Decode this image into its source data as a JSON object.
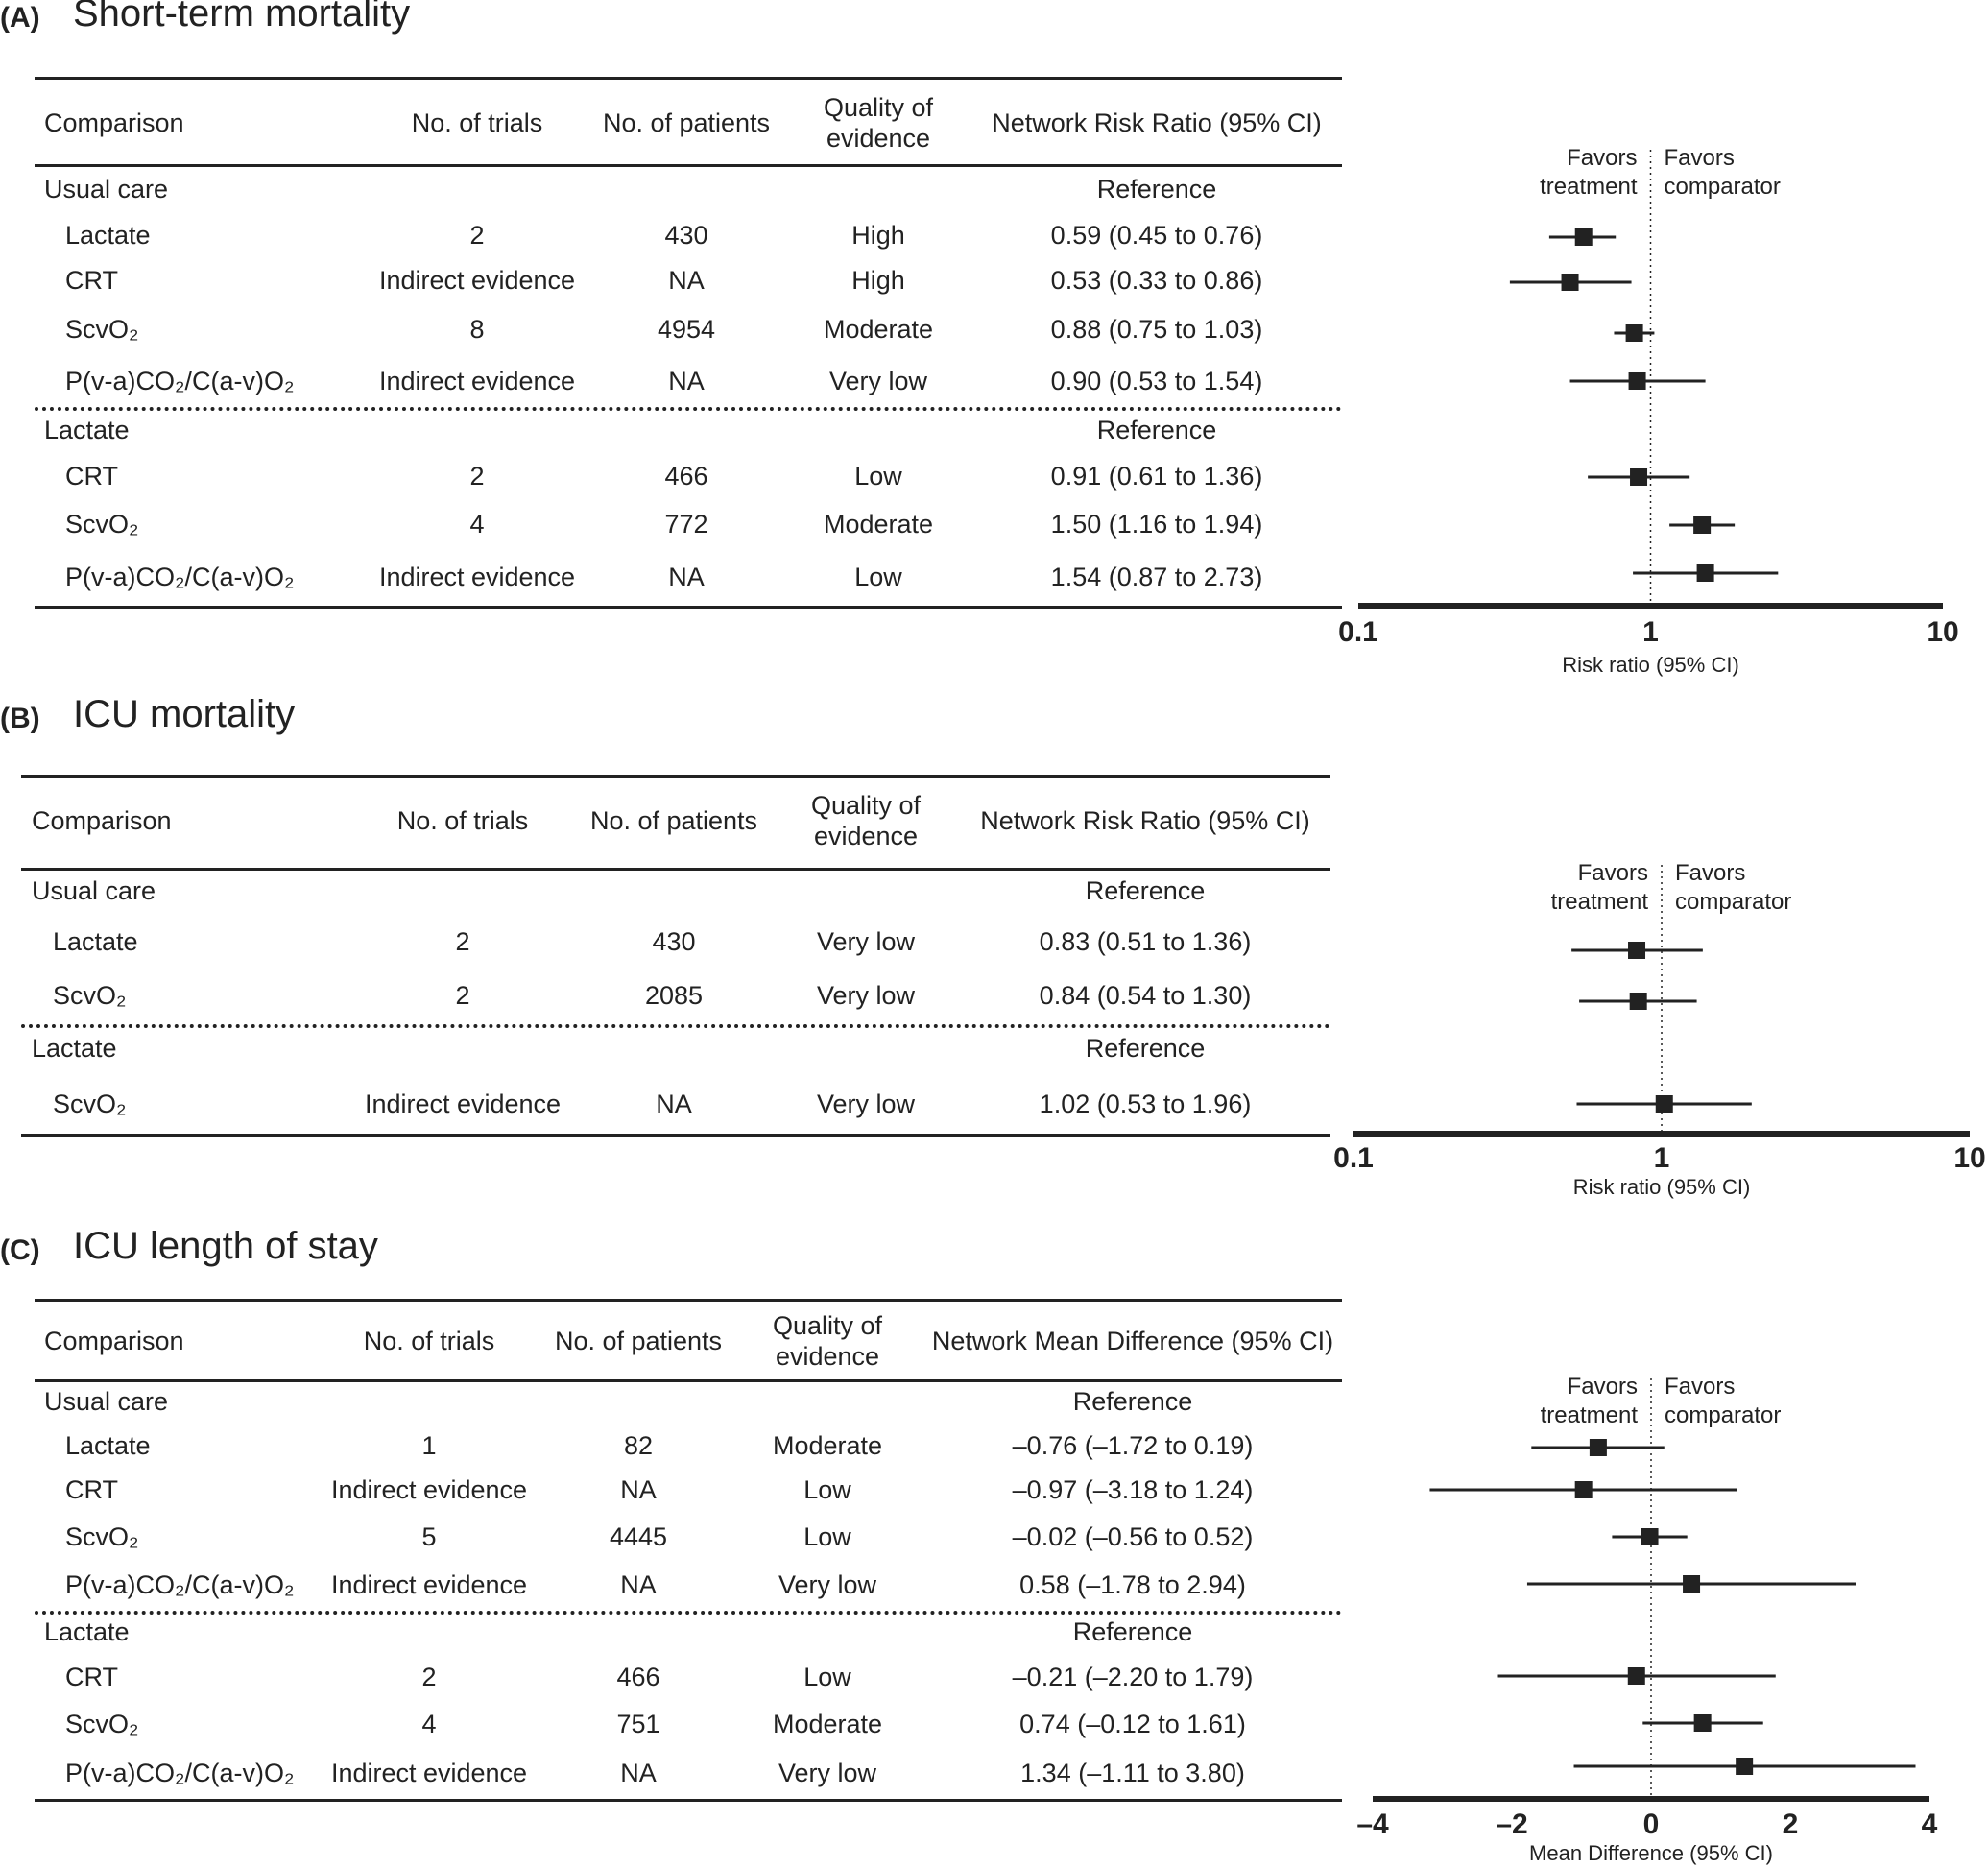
{
  "panels": [
    {
      "letter": "(A)",
      "title": "Short-term mortality",
      "headers": {
        "comparison": "Comparison",
        "trials": "No. of trials",
        "patients": "No. of patients",
        "quality": [
          "Quality of",
          "evidence"
        ],
        "effect": "Network Risk Ratio (95% CI)"
      },
      "groups": [
        {
          "reference_label": "Usual care",
          "reference_text": "Reference",
          "rows": [
            {
              "comparison": "Lactate",
              "trials": "2",
              "patients": "430",
              "quality": "High",
              "effect": "0.59 (0.45 to 0.76)"
            },
            {
              "comparison": "CRT",
              "trials": "Indirect evidence",
              "patients": "NA",
              "quality": "High",
              "effect": "0.53 (0.33 to 0.86)"
            },
            {
              "comparison": "ScvO₂",
              "trials": "8",
              "patients": "4954",
              "quality": "Moderate",
              "effect": "0.88 (0.75 to 1.03)"
            },
            {
              "comparison": "P(v-a)CO₂/C(a-v)O₂",
              "trials": "Indirect evidence",
              "patients": "NA",
              "quality": "Very low",
              "effect": "0.90 (0.53 to 1.54)"
            }
          ]
        },
        {
          "reference_label": "Lactate",
          "reference_text": "Reference",
          "rows": [
            {
              "comparison": "CRT",
              "trials": "2",
              "patients": "466",
              "quality": "Low",
              "effect": "0.91 (0.61 to 1.36)"
            },
            {
              "comparison": "ScvO₂",
              "trials": "4",
              "patients": "772",
              "quality": "Moderate",
              "effect": "1.50 (1.16 to 1.94)"
            },
            {
              "comparison": "P(v-a)CO₂/C(a-v)O₂",
              "trials": "Indirect evidence",
              "patients": "NA",
              "quality": "Low",
              "effect": "1.54 (0.87 to 2.73)"
            }
          ]
        }
      ],
      "favors_left": [
        "Favors",
        "treatment"
      ],
      "favors_right": [
        "Favors",
        "comparator"
      ]
    },
    {
      "letter": "(B)",
      "title": "ICU mortality",
      "headers": {
        "comparison": "Comparison",
        "trials": "No. of trials",
        "patients": "No. of patients",
        "quality": [
          "Quality of",
          "evidence"
        ],
        "effect": "Network Risk Ratio (95% CI)"
      },
      "groups": [
        {
          "reference_label": "Usual care",
          "reference_text": "Reference",
          "rows": [
            {
              "comparison": "Lactate",
              "trials": "2",
              "patients": "430",
              "quality": "Very low",
              "effect": "0.83 (0.51 to 1.36)"
            },
            {
              "comparison": "ScvO₂",
              "trials": "2",
              "patients": "2085",
              "quality": "Very low",
              "effect": "0.84 (0.54 to 1.30)"
            }
          ]
        },
        {
          "reference_label": "Lactate",
          "reference_text": "Reference",
          "rows": [
            {
              "comparison": "ScvO₂",
              "trials": "Indirect evidence",
              "patients": "NA",
              "quality": "Very low",
              "effect": "1.02 (0.53 to 1.96)"
            }
          ]
        }
      ],
      "favors_left": [
        "Favors",
        "treatment"
      ],
      "favors_right": [
        "Favors",
        "comparator"
      ]
    },
    {
      "letter": "(C)",
      "title": "ICU length of stay",
      "headers": {
        "comparison": "Comparison",
        "trials": "No. of trials",
        "patients": "No. of patients",
        "quality": [
          "Quality of",
          "evidence"
        ],
        "effect": "Network Mean Difference (95% CI)"
      },
      "groups": [
        {
          "reference_label": "Usual care",
          "reference_text": "Reference",
          "rows": [
            {
              "comparison": "Lactate",
              "trials": "1",
              "patients": "82",
              "quality": "Moderate",
              "effect": "–0.76 (–1.72 to 0.19)"
            },
            {
              "comparison": "CRT",
              "trials": "Indirect evidence",
              "patients": "NA",
              "quality": "Low",
              "effect": "–0.97 (–3.18 to 1.24)"
            },
            {
              "comparison": "ScvO₂",
              "trials": "5",
              "patients": "4445",
              "quality": "Low",
              "effect": "–0.02 (–0.56 to 0.52)"
            },
            {
              "comparison": "P(v-a)CO₂/C(a-v)O₂",
              "trials": "Indirect evidence",
              "patients": "NA",
              "quality": "Very low",
              "effect": "0.58 (–1.78 to 2.94)"
            }
          ]
        },
        {
          "reference_label": "Lactate",
          "reference_text": "Reference",
          "rows": [
            {
              "comparison": "CRT",
              "trials": "2",
              "patients": "466",
              "quality": "Low",
              "effect": "–0.21 (–2.20 to 1.79)"
            },
            {
              "comparison": "ScvO₂",
              "trials": "4",
              "patients": "751",
              "quality": "Moderate",
              "effect": "0.74 (–0.12 to 1.61)"
            },
            {
              "comparison": "P(v-a)CO₂/C(a-v)O₂",
              "trials": "Indirect evidence",
              "patients": "NA",
              "quality": "Very low",
              "effect": "1.34 (–1.11 to 3.80)"
            }
          ]
        }
      ],
      "favors_left": [
        "Favors",
        "treatment"
      ],
      "favors_right": [
        "Favors",
        "comparator"
      ]
    }
  ],
  "chart_data": [
    {
      "type": "scatter",
      "panel": "(A)",
      "xlabel": "Risk ratio (95% CI)",
      "xscale": "log",
      "xlim": [
        0.1,
        10
      ],
      "tick_labels": [
        "0.1",
        "1",
        "10"
      ],
      "tick_values": [
        0.1,
        1,
        10
      ],
      "reference_line": 1,
      "points": [
        {
          "estimate": 0.59,
          "lower": 0.45,
          "upper": 0.76
        },
        {
          "estimate": 0.53,
          "lower": 0.33,
          "upper": 0.86
        },
        {
          "estimate": 0.88,
          "lower": 0.75,
          "upper": 1.03
        },
        {
          "estimate": 0.9,
          "lower": 0.53,
          "upper": 1.54
        },
        {
          "estimate": 0.91,
          "lower": 0.61,
          "upper": 1.36
        },
        {
          "estimate": 1.5,
          "lower": 1.16,
          "upper": 1.94
        },
        {
          "estimate": 1.54,
          "lower": 0.87,
          "upper": 2.73
        }
      ]
    },
    {
      "type": "scatter",
      "panel": "(B)",
      "xlabel": "Risk ratio (95% CI)",
      "xscale": "log",
      "xlim": [
        0.1,
        10
      ],
      "tick_labels": [
        "0.1",
        "1",
        "10"
      ],
      "tick_values": [
        0.1,
        1,
        10
      ],
      "reference_line": 1,
      "points": [
        {
          "estimate": 0.83,
          "lower": 0.51,
          "upper": 1.36
        },
        {
          "estimate": 0.84,
          "lower": 0.54,
          "upper": 1.3
        },
        {
          "estimate": 1.02,
          "lower": 0.53,
          "upper": 1.96
        }
      ]
    },
    {
      "type": "scatter",
      "panel": "(C)",
      "xlabel": "Mean Difference (95% CI)",
      "xscale": "linear",
      "xlim": [
        -4,
        4
      ],
      "tick_labels": [
        "–4",
        "–2",
        "0",
        "2",
        "4"
      ],
      "tick_values": [
        -4,
        -2,
        0,
        2,
        4
      ],
      "reference_line": 0,
      "points": [
        {
          "estimate": -0.76,
          "lower": -1.72,
          "upper": 0.19
        },
        {
          "estimate": -0.97,
          "lower": -3.18,
          "upper": 1.24
        },
        {
          "estimate": -0.02,
          "lower": -0.56,
          "upper": 0.52
        },
        {
          "estimate": 0.58,
          "lower": -1.78,
          "upper": 2.94
        },
        {
          "estimate": -0.21,
          "lower": -2.2,
          "upper": 1.79
        },
        {
          "estimate": 0.74,
          "lower": -0.12,
          "upper": 1.61
        },
        {
          "estimate": 1.34,
          "lower": -1.11,
          "upper": 3.8
        }
      ]
    }
  ]
}
